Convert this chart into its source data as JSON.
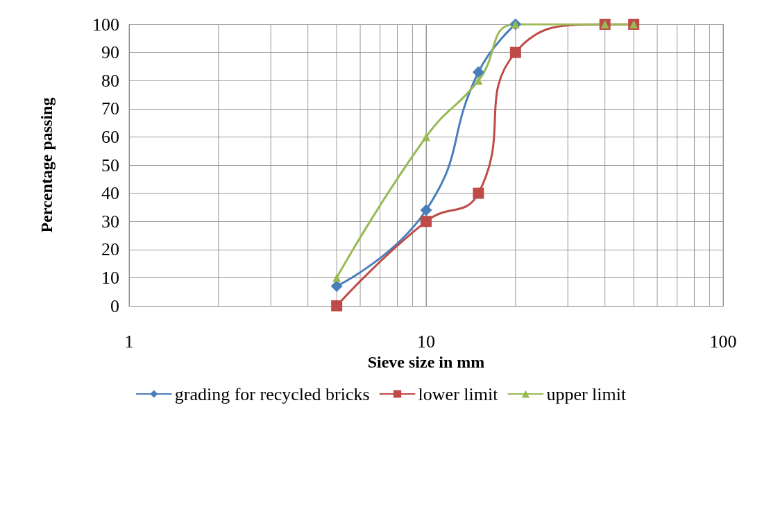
{
  "chart_data": {
    "type": "line",
    "xlabel": "Sieve size in mm",
    "ylabel": "Percentage passing",
    "log": "x",
    "xlim": [
      1,
      100
    ],
    "xticks": [
      1,
      {
        "value": 2,
        "label": null
      },
      {
        "value": 3,
        "label": null
      },
      {
        "value": 4,
        "label": null
      },
      {
        "value": 5,
        "label": null
      },
      {
        "value": 6,
        "label": null
      },
      {
        "value": 7,
        "label": null
      },
      {
        "value": 8,
        "label": null
      },
      {
        "value": 9,
        "label": null
      },
      10,
      {
        "value": 20,
        "label": null
      },
      {
        "value": 30,
        "label": null
      },
      {
        "value": 40,
        "label": null
      },
      {
        "value": 50,
        "label": null
      },
      {
        "value": 60,
        "label": null
      },
      {
        "value": 70,
        "label": null
      },
      {
        "value": 80,
        "label": null
      },
      {
        "value": 90,
        "label": null
      },
      100
    ],
    "ylim": [
      0,
      100
    ],
    "yticks": [
      0,
      10,
      20,
      30,
      40,
      50,
      60,
      70,
      80,
      90,
      100
    ],
    "grid": true,
    "legend": "bottom",
    "series": [
      {
        "name": "grading for recycled bricks",
        "color": "#4a7ebb",
        "marker": "diamond",
        "x": [
          5,
          10,
          15,
          20
        ],
        "values": [
          7,
          34,
          83,
          100
        ]
      },
      {
        "name": "lower limit",
        "color": "#be4b48",
        "marker": "square",
        "x": [
          5,
          10,
          15,
          20,
          40,
          50
        ],
        "values": [
          0,
          30,
          40,
          90,
          100,
          100
        ]
      },
      {
        "name": "upper limit",
        "color": "#98b954",
        "marker": "triangle",
        "x": [
          5,
          10,
          15,
          20,
          40,
          50
        ],
        "values": [
          10,
          60,
          80,
          100,
          100,
          100
        ]
      }
    ]
  }
}
